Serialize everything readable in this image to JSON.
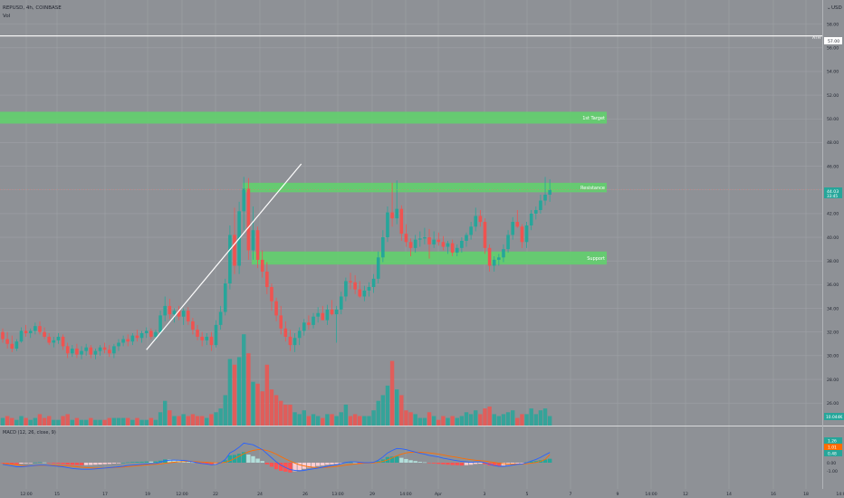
{
  "header": {
    "symbol_line": "REPUSD, 4h, COINBASE",
    "volume_label": "Vol",
    "currency": "USD",
    "price_readout": "44.03",
    "countdown": "33:45",
    "volume_readout": "10.044K"
  },
  "macd": {
    "title": "MACD (12, 26, close, 9)",
    "value_macd": "1.26",
    "value_signal": "1.01",
    "value_hist": "0.48",
    "y_ticks": [
      "1.00",
      "0.00",
      "-1.00"
    ]
  },
  "chart_data": {
    "type": "candlestick",
    "price_axis": [
      "58.00",
      "56.00",
      "54.00",
      "52.00",
      "50.00",
      "48.00",
      "46.00",
      "44.00",
      "42.00",
      "40.00",
      "38.00",
      "36.00",
      "34.00",
      "32.00",
      "30.00",
      "28.00",
      "26.00"
    ],
    "ylim": [
      24.5,
      59.5
    ],
    "x_ticks": [
      "12:00",
      "15",
      "17",
      "19",
      "12:00",
      "22",
      "24",
      "26",
      "13:00",
      "29",
      "14:00",
      "Apr",
      "3",
      "5",
      "7",
      "9",
      "14:00",
      "12",
      "14",
      "16",
      "18",
      "14:00"
    ],
    "ath": {
      "label": "ATH",
      "value": 57.0,
      "value_label": "57.00"
    },
    "zones": [
      {
        "label": "1st Target",
        "low": 49.6,
        "high": 50.6
      },
      {
        "label": "Resistance",
        "low": 43.8,
        "high": 44.6
      },
      {
        "label": "Support",
        "low": 37.7,
        "high": 38.8
      }
    ],
    "trendline": {
      "from": [
        31.0,
        30.5
      ],
      "to": [
        64.4,
        46.2
      ]
    },
    "candles": [
      [
        32.0,
        32.3,
        31.1,
        31.4
      ],
      [
        31.4,
        32.0,
        30.6,
        31.0
      ],
      [
        31.0,
        31.7,
        30.3,
        30.6
      ],
      [
        30.6,
        31.4,
        30.4,
        31.2
      ],
      [
        31.2,
        32.4,
        31.1,
        32.1
      ],
      [
        32.1,
        32.6,
        31.6,
        31.9
      ],
      [
        31.9,
        32.3,
        31.5,
        32.1
      ],
      [
        32.1,
        32.8,
        31.8,
        32.5
      ],
      [
        32.5,
        32.9,
        31.8,
        32.0
      ],
      [
        32.0,
        32.4,
        31.4,
        31.6
      ],
      [
        31.6,
        31.9,
        30.9,
        31.1
      ],
      [
        31.1,
        31.6,
        30.7,
        31.3
      ],
      [
        31.3,
        31.9,
        31.0,
        31.6
      ],
      [
        31.6,
        31.8,
        30.5,
        30.8
      ],
      [
        30.8,
        31.1,
        29.8,
        30.2
      ],
      [
        30.2,
        30.9,
        29.9,
        30.6
      ],
      [
        30.6,
        31.0,
        29.8,
        30.1
      ],
      [
        30.1,
        30.8,
        29.7,
        30.4
      ],
      [
        30.4,
        31.0,
        30.0,
        30.7
      ],
      [
        30.7,
        30.9,
        29.8,
        30.1
      ],
      [
        30.1,
        30.6,
        29.7,
        30.4
      ],
      [
        30.4,
        30.9,
        30.0,
        30.7
      ],
      [
        30.7,
        31.1,
        30.2,
        30.5
      ],
      [
        30.5,
        30.9,
        29.9,
        30.2
      ],
      [
        30.2,
        31.0,
        29.8,
        30.8
      ],
      [
        30.8,
        31.4,
        30.4,
        31.1
      ],
      [
        31.1,
        31.7,
        30.8,
        31.4
      ],
      [
        31.4,
        31.8,
        30.8,
        31.2
      ],
      [
        31.2,
        31.9,
        30.9,
        31.7
      ],
      [
        31.7,
        32.2,
        31.2,
        31.5
      ],
      [
        31.5,
        32.1,
        31.1,
        31.9
      ],
      [
        31.9,
        32.4,
        31.5,
        32.1
      ],
      [
        32.1,
        32.3,
        31.4,
        31.6
      ],
      [
        31.6,
        32.2,
        31.3,
        32.0
      ],
      [
        32.0,
        33.8,
        31.8,
        33.4
      ],
      [
        33.4,
        35.0,
        32.9,
        34.2
      ],
      [
        34.2,
        34.8,
        33.1,
        33.5
      ],
      [
        33.5,
        34.0,
        32.8,
        33.8
      ],
      [
        33.8,
        34.2,
        33.0,
        33.3
      ],
      [
        33.3,
        34.0,
        32.6,
        33.8
      ],
      [
        33.8,
        34.1,
        32.6,
        32.9
      ],
      [
        32.9,
        33.2,
        31.8,
        32.2
      ],
      [
        32.2,
        32.6,
        31.3,
        31.6
      ],
      [
        31.6,
        32.0,
        30.8,
        31.3
      ],
      [
        31.3,
        31.9,
        30.9,
        31.6
      ],
      [
        31.6,
        32.0,
        30.4,
        30.9
      ],
      [
        30.9,
        33.0,
        30.7,
        32.6
      ],
      [
        32.6,
        34.2,
        32.2,
        33.7
      ],
      [
        33.7,
        36.5,
        33.4,
        36.1
      ],
      [
        36.1,
        41.0,
        35.6,
        40.2
      ],
      [
        40.2,
        42.5,
        36.9,
        37.6
      ],
      [
        37.6,
        43.0,
        36.9,
        42.2
      ],
      [
        42.2,
        45.1,
        40.6,
        44.1
      ],
      [
        44.1,
        45.0,
        38.1,
        38.9
      ],
      [
        38.9,
        42.6,
        38.1,
        40.6
      ],
      [
        40.6,
        40.9,
        37.4,
        38.1
      ],
      [
        38.1,
        38.9,
        36.6,
        37.1
      ],
      [
        37.1,
        37.9,
        35.2,
        35.8
      ],
      [
        35.8,
        36.1,
        33.8,
        34.6
      ],
      [
        34.6,
        34.9,
        32.9,
        33.4
      ],
      [
        33.4,
        34.2,
        31.8,
        32.3
      ],
      [
        32.3,
        32.9,
        31.2,
        31.6
      ],
      [
        31.6,
        32.2,
        30.4,
        30.9
      ],
      [
        30.9,
        31.9,
        30.3,
        31.5
      ],
      [
        31.5,
        32.4,
        30.9,
        32.1
      ],
      [
        32.1,
        33.1,
        31.7,
        32.8
      ],
      [
        32.8,
        33.4,
        32.2,
        32.6
      ],
      [
        32.6,
        33.6,
        32.3,
        33.3
      ],
      [
        33.3,
        34.1,
        32.8,
        33.6
      ],
      [
        33.6,
        34.2,
        33.0,
        33.0
      ],
      [
        33.0,
        34.3,
        32.6,
        33.9
      ],
      [
        33.9,
        34.7,
        33.4,
        33.5
      ],
      [
        33.5,
        34.2,
        31.1,
        33.9
      ],
      [
        33.9,
        35.4,
        33.5,
        35.0
      ],
      [
        35.0,
        36.6,
        34.6,
        36.3
      ],
      [
        36.3,
        37.0,
        35.6,
        36.2
      ],
      [
        36.2,
        36.8,
        35.2,
        35.6
      ],
      [
        35.6,
        36.3,
        34.9,
        35.0
      ],
      [
        35.0,
        35.9,
        34.6,
        35.5
      ],
      [
        35.5,
        36.2,
        35.0,
        35.8
      ],
      [
        35.8,
        36.9,
        35.3,
        36.5
      ],
      [
        36.5,
        38.8,
        36.1,
        38.3
      ],
      [
        38.3,
        40.6,
        37.9,
        40.0
      ],
      [
        40.0,
        42.6,
        39.6,
        42.1
      ],
      [
        42.1,
        44.6,
        40.9,
        41.6
      ],
      [
        41.6,
        44.8,
        41.1,
        42.4
      ],
      [
        42.4,
        42.7,
        39.7,
        40.3
      ],
      [
        40.3,
        41.1,
        39.2,
        39.6
      ],
      [
        39.6,
        39.9,
        38.4,
        39.1
      ],
      [
        39.1,
        40.2,
        38.7,
        39.8
      ],
      [
        39.8,
        40.5,
        39.2,
        39.9
      ],
      [
        39.9,
        40.8,
        39.4,
        40.0
      ],
      [
        40.0,
        40.7,
        38.2,
        39.4
      ],
      [
        39.4,
        40.5,
        39.1,
        39.8
      ],
      [
        39.8,
        40.4,
        39.3,
        39.6
      ],
      [
        39.6,
        40.1,
        38.9,
        39.2
      ],
      [
        39.2,
        39.7,
        38.6,
        39.5
      ],
      [
        39.5,
        39.8,
        38.4,
        38.7
      ],
      [
        38.7,
        39.4,
        38.4,
        39.1
      ],
      [
        39.1,
        40.0,
        38.7,
        39.7
      ],
      [
        39.7,
        40.4,
        39.2,
        40.2
      ],
      [
        40.2,
        41.3,
        39.8,
        40.9
      ],
      [
        40.9,
        42.5,
        40.5,
        41.8
      ],
      [
        41.8,
        42.3,
        40.9,
        41.3
      ],
      [
        41.3,
        41.6,
        38.6,
        39.1
      ],
      [
        39.1,
        39.4,
        37.1,
        37.6
      ],
      [
        37.6,
        38.4,
        37.1,
        38.1
      ],
      [
        38.1,
        38.6,
        37.6,
        38.3
      ],
      [
        38.3,
        39.4,
        37.9,
        39.0
      ],
      [
        39.0,
        40.6,
        38.7,
        40.2
      ],
      [
        40.2,
        41.7,
        39.8,
        41.3
      ],
      [
        41.3,
        42.3,
        40.8,
        40.9
      ],
      [
        40.9,
        41.1,
        39.1,
        39.6
      ],
      [
        39.6,
        41.3,
        39.1,
        41.0
      ],
      [
        41.0,
        42.3,
        40.6,
        42.0
      ],
      [
        42.0,
        42.6,
        41.5,
        42.3
      ],
      [
        42.3,
        43.6,
        42.0,
        43.1
      ],
      [
        43.1,
        45.1,
        42.7,
        43.6
      ],
      [
        43.6,
        44.9,
        43.0,
        44.0
      ]
    ],
    "volume": [
      [
        0.4,
        "u"
      ],
      [
        0.5,
        "d"
      ],
      [
        0.4,
        "d"
      ],
      [
        0.3,
        "u"
      ],
      [
        0.5,
        "u"
      ],
      [
        0.4,
        "d"
      ],
      [
        0.3,
        "u"
      ],
      [
        0.4,
        "u"
      ],
      [
        0.6,
        "d"
      ],
      [
        0.4,
        "d"
      ],
      [
        0.5,
        "d"
      ],
      [
        0.3,
        "u"
      ],
      [
        0.3,
        "u"
      ],
      [
        0.5,
        "d"
      ],
      [
        0.6,
        "d"
      ],
      [
        0.3,
        "u"
      ],
      [
        0.4,
        "d"
      ],
      [
        0.3,
        "u"
      ],
      [
        0.3,
        "u"
      ],
      [
        0.4,
        "d"
      ],
      [
        0.3,
        "u"
      ],
      [
        0.3,
        "u"
      ],
      [
        0.3,
        "d"
      ],
      [
        0.4,
        "d"
      ],
      [
        0.4,
        "u"
      ],
      [
        0.4,
        "u"
      ],
      [
        0.4,
        "u"
      ],
      [
        0.4,
        "d"
      ],
      [
        0.3,
        "u"
      ],
      [
        0.4,
        "d"
      ],
      [
        0.3,
        "u"
      ],
      [
        0.3,
        "u"
      ],
      [
        0.4,
        "d"
      ],
      [
        0.3,
        "u"
      ],
      [
        0.7,
        "u"
      ],
      [
        1.3,
        "u"
      ],
      [
        0.8,
        "d"
      ],
      [
        0.5,
        "u"
      ],
      [
        0.5,
        "d"
      ],
      [
        0.6,
        "u"
      ],
      [
        0.5,
        "d"
      ],
      [
        0.6,
        "d"
      ],
      [
        0.5,
        "d"
      ],
      [
        0.5,
        "d"
      ],
      [
        0.4,
        "u"
      ],
      [
        0.6,
        "d"
      ],
      [
        0.7,
        "u"
      ],
      [
        0.9,
        "u"
      ],
      [
        1.6,
        "u"
      ],
      [
        3.5,
        "u"
      ],
      [
        3.2,
        "d"
      ],
      [
        3.6,
        "u"
      ],
      [
        4.8,
        "u"
      ],
      [
        3.8,
        "d"
      ],
      [
        2.3,
        "u"
      ],
      [
        2.2,
        "d"
      ],
      [
        1.8,
        "d"
      ],
      [
        3.2,
        "d"
      ],
      [
        1.9,
        "d"
      ],
      [
        1.6,
        "d"
      ],
      [
        1.3,
        "d"
      ],
      [
        1.1,
        "d"
      ],
      [
        1.1,
        "d"
      ],
      [
        0.7,
        "u"
      ],
      [
        0.6,
        "u"
      ],
      [
        0.8,
        "u"
      ],
      [
        0.5,
        "d"
      ],
      [
        0.6,
        "u"
      ],
      [
        0.5,
        "u"
      ],
      [
        0.4,
        "d"
      ],
      [
        0.6,
        "u"
      ],
      [
        0.6,
        "d"
      ],
      [
        0.5,
        "u"
      ],
      [
        0.7,
        "u"
      ],
      [
        1.1,
        "u"
      ],
      [
        0.5,
        "d"
      ],
      [
        0.6,
        "d"
      ],
      [
        0.5,
        "d"
      ],
      [
        0.5,
        "u"
      ],
      [
        0.5,
        "u"
      ],
      [
        0.8,
        "u"
      ],
      [
        1.3,
        "u"
      ],
      [
        1.6,
        "u"
      ],
      [
        2.1,
        "u"
      ],
      [
        3.4,
        "d"
      ],
      [
        1.9,
        "u"
      ],
      [
        1.6,
        "d"
      ],
      [
        0.8,
        "d"
      ],
      [
        0.7,
        "d"
      ],
      [
        0.6,
        "u"
      ],
      [
        0.4,
        "u"
      ],
      [
        0.4,
        "u"
      ],
      [
        0.7,
        "d"
      ],
      [
        0.5,
        "u"
      ],
      [
        0.3,
        "d"
      ],
      [
        0.5,
        "d"
      ],
      [
        0.4,
        "u"
      ],
      [
        0.5,
        "d"
      ],
      [
        0.4,
        "u"
      ],
      [
        0.5,
        "u"
      ],
      [
        0.7,
        "u"
      ],
      [
        0.6,
        "u"
      ],
      [
        0.8,
        "u"
      ],
      [
        0.6,
        "d"
      ],
      [
        0.9,
        "d"
      ],
      [
        1.0,
        "d"
      ],
      [
        0.6,
        "u"
      ],
      [
        0.5,
        "u"
      ],
      [
        0.6,
        "u"
      ],
      [
        0.7,
        "u"
      ],
      [
        0.8,
        "u"
      ],
      [
        0.4,
        "d"
      ],
      [
        0.6,
        "d"
      ],
      [
        0.6,
        "u"
      ],
      [
        0.9,
        "u"
      ],
      [
        0.6,
        "u"
      ],
      [
        0.8,
        "u"
      ],
      [
        0.9,
        "u"
      ],
      [
        0.5,
        "u"
      ]
    ],
    "macd_hist": [
      -0.05,
      -0.1,
      -0.18,
      -0.2,
      -0.12,
      -0.08,
      -0.03,
      0.02,
      0.05,
      0.03,
      -0.05,
      -0.1,
      -0.12,
      -0.18,
      -0.25,
      -0.28,
      -0.3,
      -0.32,
      -0.3,
      -0.28,
      -0.25,
      -0.22,
      -0.18,
      -0.15,
      -0.1,
      -0.05,
      0.0,
      0.05,
      0.08,
      0.1,
      0.12,
      0.15,
      0.14,
      0.15,
      0.25,
      0.4,
      0.38,
      0.35,
      0.28,
      0.25,
      0.15,
      0.05,
      -0.05,
      -0.15,
      -0.18,
      -0.25,
      -0.15,
      0.05,
      0.3,
      0.9,
      0.95,
      1.1,
      1.3,
      1.0,
      0.8,
      0.5,
      0.2,
      -0.2,
      -0.5,
      -0.8,
      -1.0,
      -1.1,
      -1.2,
      -1.05,
      -0.9,
      -0.75,
      -0.6,
      -0.5,
      -0.4,
      -0.35,
      -0.25,
      -0.2,
      -0.15,
      -0.05,
      0.05,
      0.05,
      0.02,
      -0.03,
      -0.05,
      -0.02,
      0.05,
      0.2,
      0.4,
      0.7,
      0.75,
      0.8,
      0.6,
      0.45,
      0.3,
      0.2,
      0.1,
      0.05,
      -0.05,
      -0.1,
      -0.15,
      -0.2,
      -0.25,
      -0.3,
      -0.32,
      -0.35,
      -0.3,
      -0.25,
      -0.15,
      -0.12,
      -0.2,
      -0.35,
      -0.4,
      -0.42,
      -0.35,
      -0.25,
      -0.15,
      -0.1,
      -0.08,
      0.05,
      0.15,
      0.2,
      0.3,
      0.4,
      0.48
    ],
    "macd_line": [
      -0.2,
      -0.3,
      -0.4,
      -0.5,
      -0.5,
      -0.45,
      -0.4,
      -0.35,
      -0.3,
      -0.3,
      -0.35,
      -0.4,
      -0.45,
      -0.5,
      -0.6,
      -0.7,
      -0.75,
      -0.8,
      -0.8,
      -0.8,
      -0.75,
      -0.7,
      -0.65,
      -0.6,
      -0.55,
      -0.5,
      -0.45,
      -0.35,
      -0.3,
      -0.25,
      -0.2,
      -0.15,
      -0.12,
      -0.1,
      0.05,
      0.25,
      0.3,
      0.32,
      0.3,
      0.28,
      0.2,
      0.1,
      0.0,
      -0.1,
      -0.15,
      -0.25,
      -0.2,
      0.0,
      0.4,
      1.2,
      1.5,
      1.9,
      2.4,
      2.3,
      2.2,
      1.9,
      1.6,
      1.1,
      0.6,
      0.1,
      -0.3,
      -0.6,
      -0.85,
      -0.95,
      -1.0,
      -0.95,
      -0.85,
      -0.75,
      -0.65,
      -0.55,
      -0.45,
      -0.35,
      -0.25,
      -0.1,
      0.05,
      0.1,
      0.1,
      0.05,
      0.0,
      0.0,
      0.05,
      0.3,
      0.7,
      1.2,
      1.5,
      1.75,
      1.7,
      1.6,
      1.45,
      1.3,
      1.15,
      1.05,
      0.9,
      0.8,
      0.7,
      0.55,
      0.45,
      0.35,
      0.25,
      0.15,
      0.1,
      0.05,
      0.1,
      0.1,
      0.0,
      -0.2,
      -0.35,
      -0.45,
      -0.45,
      -0.4,
      -0.3,
      -0.2,
      -0.15,
      0.0,
      0.2,
      0.4,
      0.65,
      0.95,
      1.26
    ],
    "signal_line": [
      -0.1,
      -0.15,
      -0.2,
      -0.28,
      -0.35,
      -0.38,
      -0.38,
      -0.37,
      -0.35,
      -0.33,
      -0.3,
      -0.3,
      -0.33,
      -0.36,
      -0.4,
      -0.45,
      -0.5,
      -0.55,
      -0.6,
      -0.63,
      -0.65,
      -0.65,
      -0.64,
      -0.62,
      -0.6,
      -0.57,
      -0.53,
      -0.48,
      -0.43,
      -0.38,
      -0.33,
      -0.28,
      -0.24,
      -0.2,
      -0.15,
      -0.08,
      0.0,
      0.06,
      0.1,
      0.13,
      0.15,
      0.14,
      0.12,
      0.08,
      0.04,
      0.0,
      -0.02,
      -0.02,
      0.05,
      0.25,
      0.5,
      0.8,
      1.1,
      1.35,
      1.5,
      1.6,
      1.6,
      1.5,
      1.3,
      1.05,
      0.75,
      0.45,
      0.2,
      -0.05,
      -0.25,
      -0.4,
      -0.5,
      -0.57,
      -0.6,
      -0.6,
      -0.57,
      -0.52,
      -0.45,
      -0.38,
      -0.3,
      -0.22,
      -0.15,
      -0.1,
      -0.06,
      -0.04,
      -0.02,
      0.03,
      0.15,
      0.35,
      0.6,
      0.85,
      1.05,
      1.2,
      1.28,
      1.3,
      1.28,
      1.25,
      1.2,
      1.13,
      1.05,
      0.95,
      0.85,
      0.75,
      0.65,
      0.55,
      0.45,
      0.37,
      0.3,
      0.25,
      0.2,
      0.12,
      0.03,
      -0.05,
      -0.12,
      -0.16,
      -0.18,
      -0.18,
      -0.17,
      -0.13,
      -0.07,
      0.02,
      0.15,
      0.4,
      1.01
    ]
  }
}
